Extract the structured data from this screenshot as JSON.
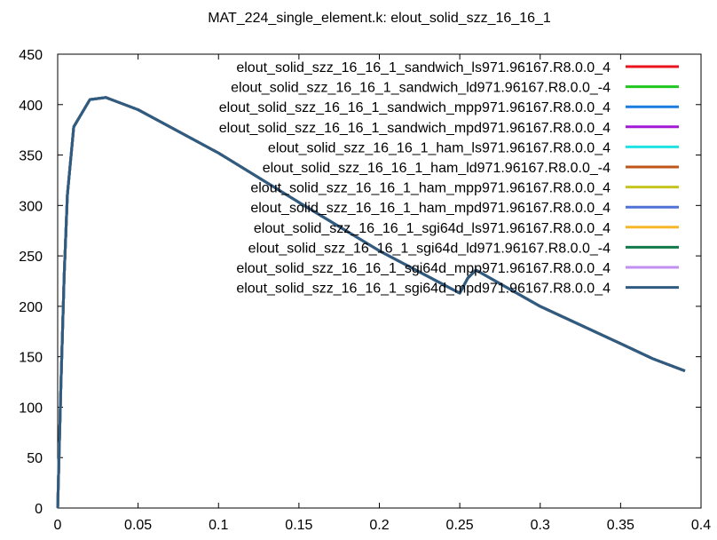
{
  "chart_data": {
    "type": "line",
    "title": "MAT_224_single_element.k: elout_solid_szz_16_16_1",
    "xlabel": "",
    "ylabel": "",
    "xlim": [
      0,
      0.4
    ],
    "ylim": [
      0,
      450
    ],
    "x_ticks": [
      "0",
      "0.05",
      "0.1",
      "0.15",
      "0.2",
      "0.25",
      "0.3",
      "0.35",
      "0.4"
    ],
    "y_ticks": [
      "0",
      "50",
      "100",
      "150",
      "200",
      "250",
      "300",
      "350",
      "400",
      "450"
    ],
    "grid": false,
    "legend_position": "top-right",
    "series": [
      {
        "name": "elout_solid_szz_16_16_1_sandwich_ls971.96167.R8.0.0_4",
        "color": "#e8131d"
      },
      {
        "name": "elout_solid_szz_16_16_1_sandwich_ld971.96167.R8.0.0_-4",
        "color": "#1fc71f"
      },
      {
        "name": "elout_solid_szz_16_16_1_sandwich_mpp971.96167.R8.0.0_4",
        "color": "#1a7de0"
      },
      {
        "name": "elout_solid_szz_16_16_1_sandwich_mpd971.96167.R8.0.0_4",
        "color": "#a219d6"
      },
      {
        "name": "elout_solid_szz_16_16_1_ham_ls971.96167.R8.0.0_4",
        "color": "#1fe3e3"
      },
      {
        "name": "elout_solid_szz_16_16_1_ham_ld971.96167.R8.0.0_-4",
        "color": "#c0551a"
      },
      {
        "name": "elout_solid_szz_16_16_1_ham_mpp971.96167.R8.0.0_4",
        "color": "#c6c41e"
      },
      {
        "name": "elout_solid_szz_16_16_1_ham_mpd971.96167.R8.0.0_4",
        "color": "#4f71d8"
      },
      {
        "name": "elout_solid_szz_16_16_1_sgi64d_ls971.96167.R8.0.0_4",
        "color": "#f7b72a"
      },
      {
        "name": "elout_solid_szz_16_16_1_sgi64d_ld971.96167.R8.0.0_-4",
        "color": "#117a4a"
      },
      {
        "name": "elout_solid_szz_16_16_1_sgi64d_mpp971.96167.R8.0.0_4",
        "color": "#c28ff2"
      },
      {
        "name": "elout_solid_szz_16_16_1_sgi64d_mpd971.96167.R8.0.0_4",
        "color": "#2e5b7f"
      }
    ],
    "curve": {
      "x": [
        0,
        0.001,
        0.002,
        0.004,
        0.006,
        0.01,
        0.02,
        0.03,
        0.05,
        0.1,
        0.15,
        0.2,
        0.25,
        0.255,
        0.26,
        0.3,
        0.35,
        0.37,
        0.39
      ],
      "y": [
        0,
        60,
        120,
        230,
        310,
        378,
        405,
        407,
        395,
        352,
        303,
        255,
        213,
        228,
        236,
        200,
        163,
        148,
        136
      ]
    }
  }
}
